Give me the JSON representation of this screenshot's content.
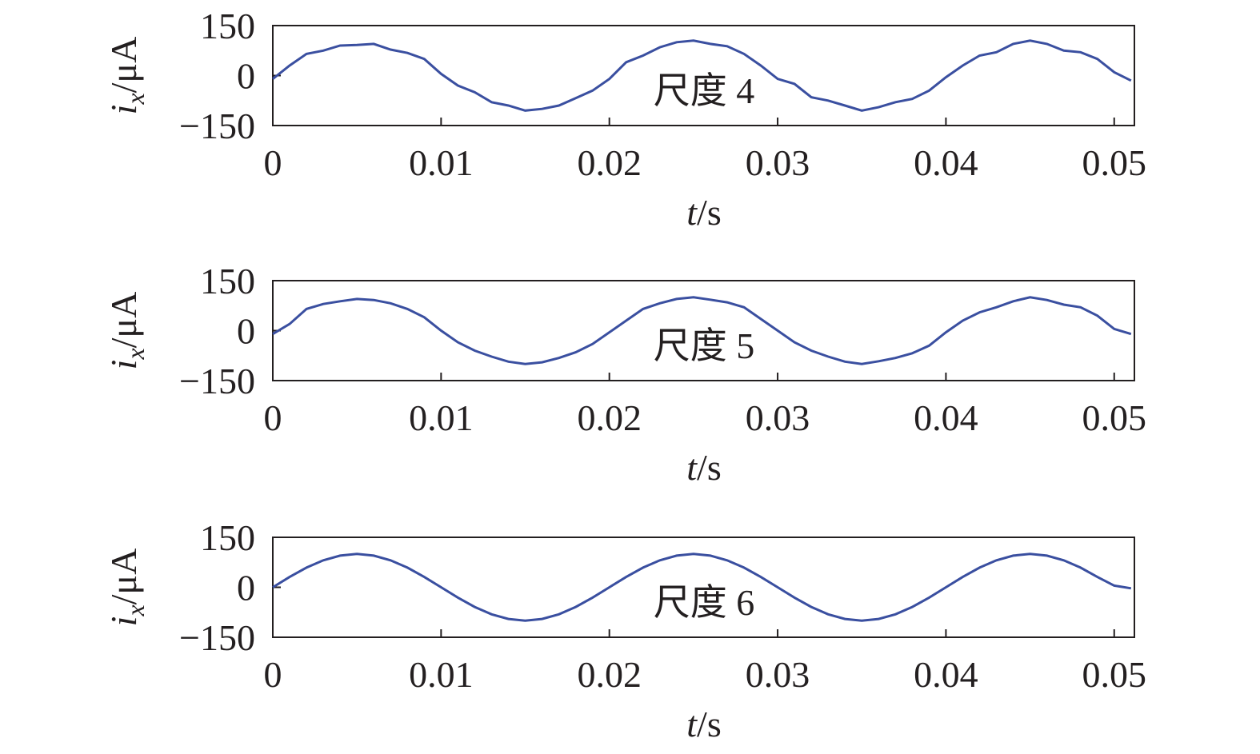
{
  "chart_data": [
    {
      "type": "line",
      "annotation": "尺度 4",
      "x_label": {
        "var": "t",
        "unit": "/s"
      },
      "y_label": {
        "var": "i",
        "sub": "x",
        "unit": "/μA"
      },
      "color": "#3a4fa0",
      "x": [
        0,
        0.001,
        0.002,
        0.003,
        0.004,
        0.005,
        0.006,
        0.007,
        0.008,
        0.009,
        0.01,
        0.011,
        0.012,
        0.013,
        0.014,
        0.015,
        0.016,
        0.017,
        0.018,
        0.019,
        0.02,
        0.021,
        0.022,
        0.023,
        0.024,
        0.025,
        0.026,
        0.027,
        0.028,
        0.029,
        0.03,
        0.031,
        0.032,
        0.033,
        0.034,
        0.035,
        0.036,
        0.037,
        0.038,
        0.039,
        0.04,
        0.041,
        0.042,
        0.043,
        0.044,
        0.045,
        0.046,
        0.047,
        0.048,
        0.049,
        0.05,
        0.051
      ],
      "values": [
        -10,
        30,
        65,
        75,
        90,
        92,
        95,
        78,
        68,
        50,
        5,
        -30,
        -50,
        -80,
        -90,
        -105,
        -100,
        -90,
        -68,
        -45,
        -10,
        40,
        60,
        85,
        100,
        105,
        95,
        88,
        65,
        30,
        -10,
        -25,
        -65,
        -75,
        -90,
        -105,
        -95,
        -80,
        -70,
        -45,
        -5,
        30,
        60,
        70,
        95,
        105,
        95,
        75,
        70,
        50,
        10,
        -15
      ],
      "xlim": [
        0,
        0.0512
      ],
      "xticks": [
        0,
        0.01,
        0.02,
        0.03,
        0.04,
        0.05
      ],
      "ylim": [
        -150,
        150
      ],
      "yticks": [
        {
          "value": -150,
          "label": "−150"
        },
        0,
        150
      ]
    },
    {
      "type": "line",
      "annotation": "尺度 5",
      "x_label": {
        "var": "t",
        "unit": "/s"
      },
      "y_label": {
        "var": "i",
        "sub": "x",
        "unit": "/μA"
      },
      "color": "#3a4fa0",
      "x": [
        0,
        0.001,
        0.002,
        0.003,
        0.004,
        0.005,
        0.006,
        0.007,
        0.008,
        0.009,
        0.01,
        0.011,
        0.012,
        0.013,
        0.014,
        0.015,
        0.016,
        0.017,
        0.018,
        0.019,
        0.02,
        0.021,
        0.022,
        0.023,
        0.024,
        0.025,
        0.026,
        0.027,
        0.028,
        0.029,
        0.03,
        0.031,
        0.032,
        0.033,
        0.034,
        0.035,
        0.036,
        0.037,
        0.038,
        0.039,
        0.04,
        0.041,
        0.042,
        0.043,
        0.044,
        0.045,
        0.046,
        0.047,
        0.048,
        0.049,
        0.05,
        0.051
      ],
      "values": [
        -10,
        20,
        65,
        80,
        88,
        95,
        92,
        82,
        65,
        40,
        0,
        -35,
        -60,
        -78,
        -93,
        -100,
        -95,
        -82,
        -65,
        -40,
        -5,
        30,
        65,
        82,
        95,
        100,
        93,
        85,
        70,
        35,
        0,
        -35,
        -60,
        -78,
        -93,
        -100,
        -92,
        -82,
        -68,
        -45,
        -5,
        30,
        55,
        70,
        88,
        100,
        92,
        78,
        70,
        45,
        5,
        -10
      ],
      "xlim": [
        0,
        0.0512
      ],
      "xticks": [
        0,
        0.01,
        0.02,
        0.03,
        0.04,
        0.05
      ],
      "ylim": [
        -150,
        150
      ],
      "yticks": [
        {
          "value": -150,
          "label": "−150"
        },
        0,
        150
      ]
    },
    {
      "type": "line",
      "annotation": "尺度 6",
      "x_label": {
        "var": "t",
        "unit": "/s"
      },
      "y_label": {
        "var": "i",
        "sub": "x",
        "unit": "/μA"
      },
      "color": "#3a4fa0",
      "x": [
        0,
        0.001,
        0.002,
        0.003,
        0.004,
        0.005,
        0.006,
        0.007,
        0.008,
        0.009,
        0.01,
        0.011,
        0.012,
        0.013,
        0.014,
        0.015,
        0.016,
        0.017,
        0.018,
        0.019,
        0.02,
        0.021,
        0.022,
        0.023,
        0.024,
        0.025,
        0.026,
        0.027,
        0.028,
        0.029,
        0.03,
        0.031,
        0.032,
        0.033,
        0.034,
        0.035,
        0.036,
        0.037,
        0.038,
        0.039,
        0.04,
        0.041,
        0.042,
        0.043,
        0.044,
        0.045,
        0.046,
        0.047,
        0.048,
        0.049,
        0.05,
        0.051
      ],
      "values": [
        0,
        31,
        59,
        81,
        95,
        100,
        95,
        81,
        59,
        31,
        0,
        -31,
        -59,
        -81,
        -95,
        -100,
        -95,
        -81,
        -59,
        -31,
        0,
        31,
        59,
        81,
        95,
        100,
        95,
        81,
        59,
        31,
        0,
        -31,
        -59,
        -81,
        -95,
        -100,
        -95,
        -81,
        -59,
        -31,
        0,
        31,
        59,
        81,
        95,
        100,
        95,
        81,
        59,
        31,
        5,
        -3
      ],
      "xlim": [
        0,
        0.0512
      ],
      "xticks": [
        0,
        0.01,
        0.02,
        0.03,
        0.04,
        0.05
      ],
      "ylim": [
        -150,
        150
      ],
      "yticks": [
        {
          "value": -150,
          "label": "−150"
        },
        0,
        150
      ]
    }
  ]
}
